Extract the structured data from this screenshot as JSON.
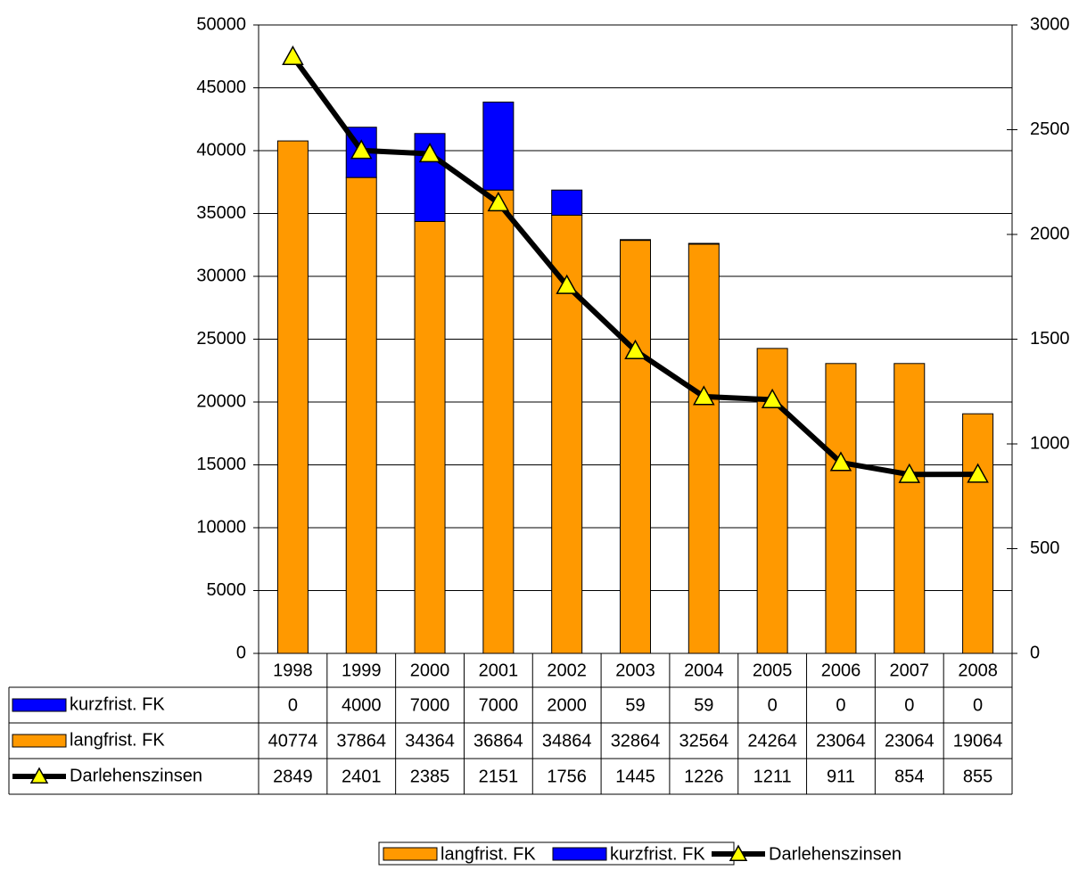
{
  "chart_data": {
    "type": "bar",
    "categories": [
      "1998",
      "1999",
      "2000",
      "2001",
      "2002",
      "2003",
      "2004",
      "2005",
      "2006",
      "2007",
      "2008"
    ],
    "series": [
      {
        "name": "langfrist. FK",
        "type": "bar",
        "color": "#ff9900",
        "values": [
          40774,
          37864,
          34364,
          36864,
          34864,
          32864,
          32564,
          24264,
          23064,
          23064,
          19064
        ]
      },
      {
        "name": "kurzfrist. FK",
        "type": "bar",
        "color": "#0000ff",
        "values": [
          0,
          4000,
          7000,
          7000,
          2000,
          59,
          59,
          0,
          0,
          0,
          0
        ]
      },
      {
        "name": "Darlehenszinsen",
        "type": "line",
        "axis": "y2",
        "color": "#000000",
        "marker_color": "#ffff00",
        "values": [
          2849,
          2401,
          2385,
          2151,
          1756,
          1445,
          1226,
          1211,
          911,
          854,
          855
        ]
      }
    ],
    "ylim": [
      0,
      50000
    ],
    "yticks": [
      0,
      5000,
      10000,
      15000,
      20000,
      25000,
      30000,
      35000,
      40000,
      45000,
      50000
    ],
    "y2lim": [
      0,
      3000
    ],
    "y2ticks": [
      0,
      500,
      1000,
      1500,
      2000,
      2500,
      3000
    ],
    "grid": true,
    "stacked": true,
    "data_table": true,
    "legend": "bottom"
  }
}
